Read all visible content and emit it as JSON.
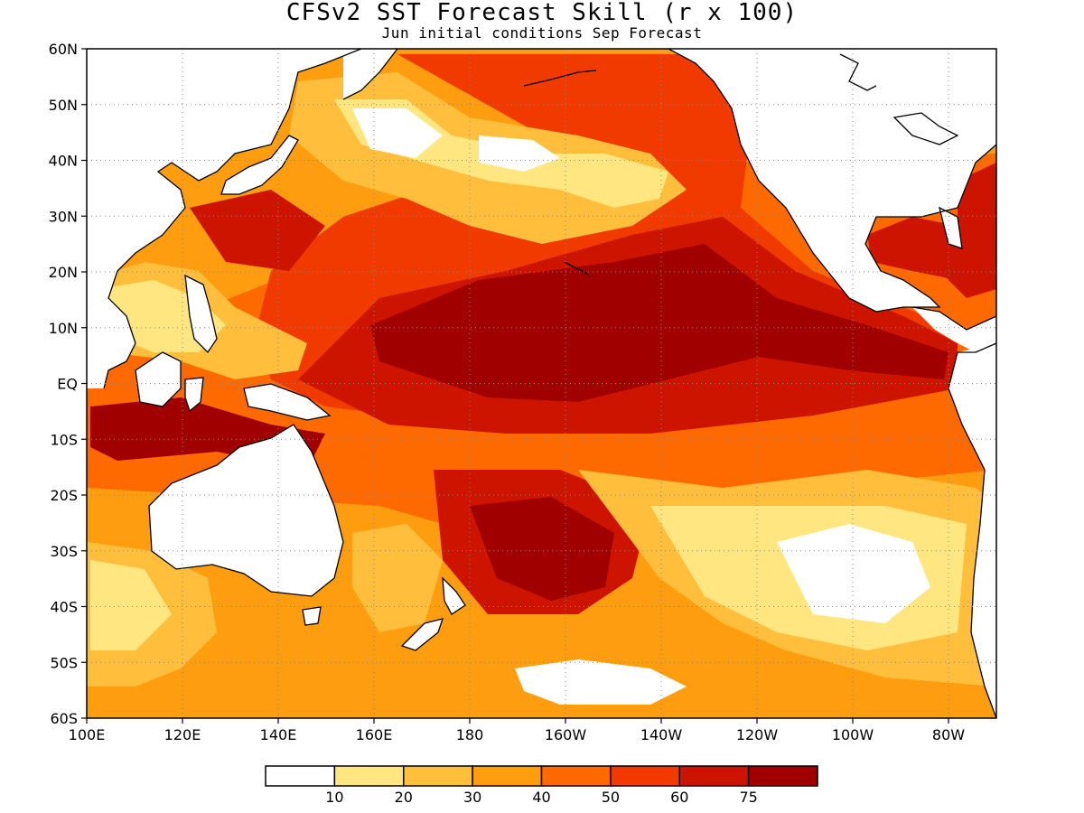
{
  "title": "CFSv2 SST Forecast Skill (r x 100)",
  "subtitle": "Jun initial conditions  Sep Forecast",
  "colors": {
    "bin_0_10": "#ffffff",
    "bin_10_20": "#ffe680",
    "bin_20_30": "#ffbf3c",
    "bin_30_40": "#ff9d10",
    "bin_40_50": "#ff6a00",
    "bin_50_60": "#f03a00",
    "bin_60_75": "#cc1400",
    "bin_75_up": "#a00000",
    "land": "#ffffff",
    "coast": "#000000"
  },
  "y_axis_labels": [
    "60N",
    "50N",
    "40N",
    "30N",
    "20N",
    "10N",
    "EQ",
    "10S",
    "20S",
    "30S",
    "40S",
    "50S",
    "60S"
  ],
  "x_axis_labels": [
    "100E",
    "120E",
    "140E",
    "160E",
    "180",
    "160W",
    "140W",
    "120W",
    "100W",
    "80W"
  ],
  "legend": {
    "ticks": [
      "10",
      "20",
      "30",
      "40",
      "50",
      "60",
      "75"
    ]
  }
}
